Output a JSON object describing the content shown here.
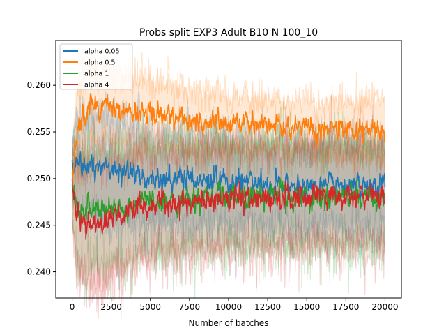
{
  "chart_data": {
    "type": "line",
    "title": "Probs split EXP3 Adult B10 N 100_10",
    "xlabel": "Number of batches",
    "ylabel": "",
    "xlim": [
      -1050,
      21050
    ],
    "ylim": [
      0.2372,
      0.2648
    ],
    "xticks": [
      0,
      2500,
      5000,
      7500,
      10000,
      12500,
      15000,
      17500,
      20000
    ],
    "yticks": [
      0.24,
      0.245,
      0.25,
      0.255,
      0.26
    ],
    "ytick_labels": [
      "0.240",
      "0.245",
      "0.250",
      "0.255",
      "0.260"
    ],
    "grid": false,
    "legend_position": "upper left",
    "shaded_band": "per-series variability band around mean",
    "series": [
      {
        "name": "alpha 0.05",
        "color": "#1f77b4",
        "x": [
          0,
          250,
          500,
          1000,
          2000,
          3000,
          4000,
          5000,
          6000,
          7500,
          10000,
          12500,
          15000,
          17500,
          20000
        ],
        "y": [
          0.2505,
          0.2515,
          0.2518,
          0.2515,
          0.2512,
          0.2508,
          0.2505,
          0.2502,
          0.25,
          0.2498,
          0.2496,
          0.2495,
          0.2493,
          0.2493,
          0.2495
        ],
        "band": [
          0.0032,
          0.0048,
          0.0052,
          0.0055,
          0.0058,
          0.0056,
          0.0052,
          0.005,
          0.0049,
          0.0048,
          0.0047,
          0.0046,
          0.0046,
          0.0046,
          0.0045
        ]
      },
      {
        "name": "alpha 0.5",
        "color": "#ff7f0e",
        "x": [
          0,
          250,
          500,
          1000,
          1500,
          2000,
          3000,
          4000,
          5000,
          7500,
          10000,
          12500,
          15000,
          17500,
          20000
        ],
        "y": [
          0.2505,
          0.2535,
          0.256,
          0.2575,
          0.258,
          0.258,
          0.2575,
          0.257,
          0.2567,
          0.2563,
          0.256,
          0.2557,
          0.2555,
          0.2553,
          0.2552
        ],
        "band": [
          0.003,
          0.004,
          0.0042,
          0.0042,
          0.0042,
          0.004,
          0.004,
          0.0038,
          0.0036,
          0.0033,
          0.003,
          0.0028,
          0.0028,
          0.003,
          0.0035
        ]
      },
      {
        "name": "alpha 1",
        "color": "#2ca02c",
        "x": [
          0,
          250,
          500,
          1000,
          2000,
          3000,
          4000,
          5000,
          6000,
          7500,
          10000,
          12500,
          15000,
          17500,
          20000
        ],
        "y": [
          0.25,
          0.2475,
          0.2468,
          0.2466,
          0.2467,
          0.247,
          0.2472,
          0.2475,
          0.2477,
          0.2478,
          0.248,
          0.2481,
          0.2481,
          0.2482,
          0.2482
        ],
        "band": [
          0.004,
          0.0058,
          0.0062,
          0.0063,
          0.0062,
          0.006,
          0.0058,
          0.0058,
          0.0057,
          0.0056,
          0.0056,
          0.0056,
          0.0056,
          0.0056,
          0.0056
        ]
      },
      {
        "name": "alpha 4",
        "color": "#d62728",
        "x": [
          0,
          250,
          500,
          1000,
          1500,
          2000,
          3000,
          4000,
          5000,
          7500,
          10000,
          12500,
          15000,
          17500,
          20000
        ],
        "y": [
          0.25,
          0.247,
          0.246,
          0.2455,
          0.2452,
          0.2455,
          0.2462,
          0.2466,
          0.247,
          0.2475,
          0.2478,
          0.248,
          0.248,
          0.2481,
          0.2482
        ],
        "band": [
          0.0042,
          0.006,
          0.0065,
          0.0068,
          0.0068,
          0.0067,
          0.0063,
          0.006,
          0.0058,
          0.0056,
          0.0055,
          0.0055,
          0.0055,
          0.0055,
          0.0055
        ]
      }
    ]
  }
}
